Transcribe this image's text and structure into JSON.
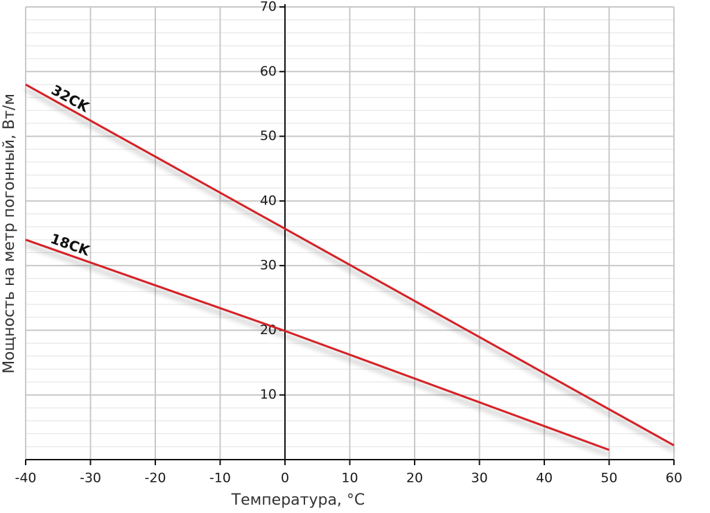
{
  "chart_data": {
    "type": "line",
    "x_label": "Температура, °C",
    "y_label": "Мощность на метр погонный, Вт/м",
    "series": [
      {
        "name": "32CK",
        "color": "#d42027",
        "x": [
          -40,
          0,
          60
        ],
        "values": [
          58,
          35.7,
          2.2
        ]
      },
      {
        "name": "18CK",
        "color": "#d42027",
        "x": [
          -40,
          0,
          50
        ],
        "values": [
          34,
          19.9,
          1.5
        ]
      }
    ],
    "xlim": [
      -40,
      60
    ],
    "xticks": [
      -40,
      -30,
      -20,
      -10,
      0,
      10,
      20,
      30,
      40,
      50,
      60
    ],
    "ylim": [
      0,
      70
    ],
    "yticks": [
      10,
      20,
      30,
      40,
      50,
      60,
      70
    ],
    "grid": true,
    "minor_y_step": 2
  }
}
